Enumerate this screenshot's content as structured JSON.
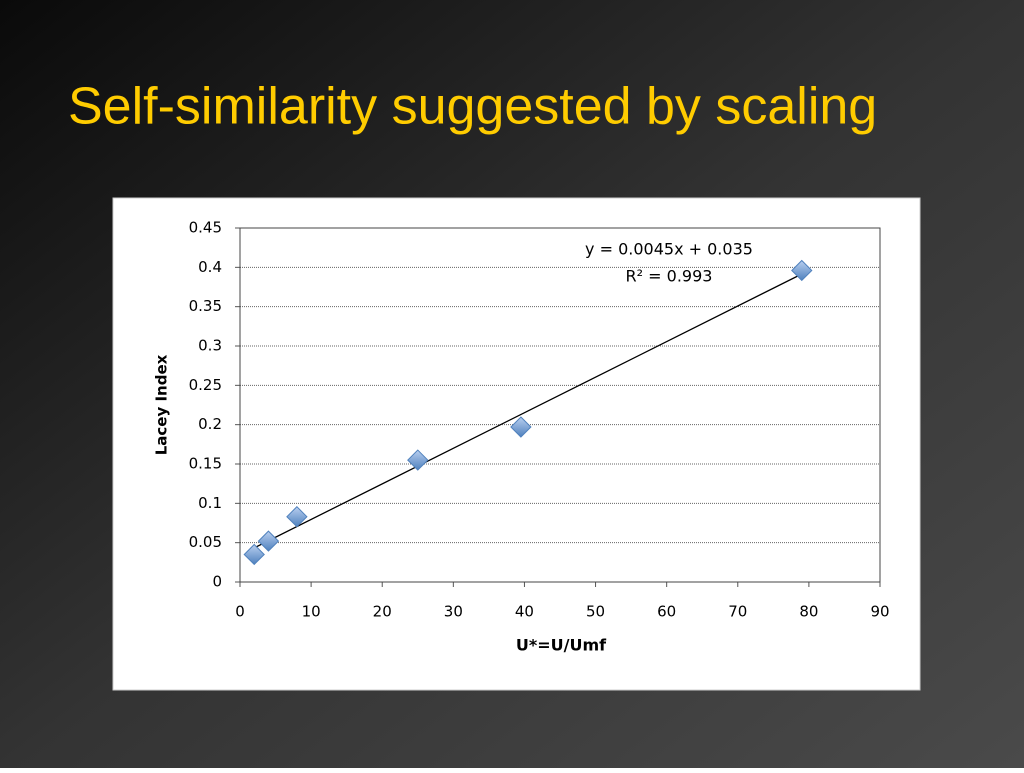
{
  "chart_data": {
    "type": "scatter",
    "title": "Self-similarity suggested by scaling",
    "x_label": "U*=U/Umf",
    "y_label": "Lacey Index",
    "annotations": [
      "y = 0.0045x + 0.035",
      "R² = 0.993"
    ],
    "x": [
      2,
      4,
      8,
      25,
      39.5,
      79
    ],
    "values": [
      0.035,
      0.052,
      0.083,
      0.155,
      0.197,
      0.396
    ],
    "color": "#4f81bd",
    "xlim": [
      0,
      90
    ],
    "xticks": [
      0,
      10,
      20,
      30,
      40,
      50,
      60,
      70,
      80,
      90
    ],
    "ylim": [
      0,
      0.45
    ],
    "yticks": [
      0,
      0.05,
      0.1,
      0.15,
      0.2,
      0.25,
      0.3,
      0.35,
      0.4,
      0.45
    ],
    "grid": true,
    "trendline": true
  }
}
